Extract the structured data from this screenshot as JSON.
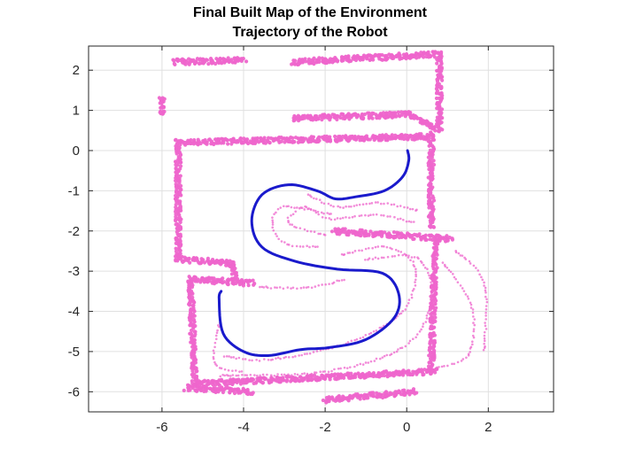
{
  "chart_data": {
    "type": "scatter",
    "title": "Final Built Map of the Environment",
    "subtitle": "Trajectory of the Robot",
    "xlabel": "",
    "ylabel": "",
    "xlim": [
      -7.8,
      3.6
    ],
    "ylim": [
      -6.5,
      2.6
    ],
    "x_ticks": [
      "-6",
      "-4",
      "-2",
      "0",
      "2"
    ],
    "x_tick_values": [
      -6,
      -4,
      -2,
      0,
      2
    ],
    "y_ticks": [
      "2",
      "1",
      "0",
      "-1",
      "-2",
      "-3",
      "-4",
      "-5",
      "-6"
    ],
    "y_tick_values": [
      2,
      1,
      0,
      -1,
      -2,
      -3,
      -4,
      -5,
      -6
    ],
    "grid": true,
    "colors": {
      "map": "#ee66cc",
      "trajectory": "#1a1acc",
      "grid": "#e0e0e0",
      "axes": "#262626"
    },
    "series": [
      {
        "marker": "dots",
        "walls": [
          [
            [
              -5.6,
              0.2
            ],
            [
              0.5,
              0.35
            ]
          ],
          [
            [
              -5.6,
              0.25
            ],
            [
              -5.6,
              -2.7
            ]
          ],
          [
            [
              -5.6,
              -2.7
            ],
            [
              -4.3,
              -2.8
            ]
          ],
          [
            [
              -4.3,
              -2.8
            ],
            [
              -4.2,
              -3.2
            ]
          ],
          [
            [
              -5.3,
              -3.2
            ],
            [
              -3.8,
              -3.3
            ]
          ],
          [
            [
              -5.3,
              -3.2
            ],
            [
              -5.2,
              -5.8
            ]
          ],
          [
            [
              -5.2,
              -5.8
            ],
            [
              0.7,
              -5.5
            ]
          ],
          [
            [
              0.6,
              0.5
            ],
            [
              0.6,
              -1.9
            ]
          ],
          [
            [
              -1.8,
              -2.0
            ],
            [
              1.1,
              -2.2
            ]
          ],
          [
            [
              0.7,
              -2.2
            ],
            [
              0.6,
              -5.5
            ]
          ],
          [
            [
              -2.8,
              0.8
            ],
            [
              0.1,
              0.9
            ]
          ],
          [
            [
              0.1,
              0.9
            ],
            [
              0.8,
              0.5
            ]
          ],
          [
            [
              -2.8,
              2.2
            ],
            [
              0.8,
              2.4
            ]
          ],
          [
            [
              0.8,
              2.4
            ],
            [
              0.8,
              0.6
            ]
          ],
          [
            [
              -6.0,
              1.3
            ],
            [
              -6.0,
              0.9
            ]
          ],
          [
            [
              -5.7,
              2.2
            ],
            [
              -4.0,
              2.25
            ]
          ],
          [
            [
              -5.4,
              -5.9
            ],
            [
              -3.8,
              -6.0
            ]
          ],
          [
            [
              -2.0,
              -6.2
            ],
            [
              0.2,
              -6.0
            ]
          ]
        ],
        "arcs": [
          [
            [
              -2.4,
              -1.1
            ],
            [
              -1.7,
              -1.4
            ],
            [
              -0.7,
              -1.3
            ],
            [
              0.3,
              -1.5
            ]
          ],
          [
            [
              -2.0,
              -2.1
            ],
            [
              -2.9,
              -1.8
            ],
            [
              -2.5,
              -1.4
            ],
            [
              -1.9,
              -1.7
            ],
            [
              -0.8,
              -1.6
            ],
            [
              0.2,
              -1.8
            ]
          ],
          [
            [
              -2.2,
              -2.4
            ],
            [
              -3.0,
              -2.3
            ],
            [
              -3.3,
              -1.8
            ],
            [
              -3.0,
              -1.4
            ],
            [
              -1.8,
              -1.6
            ]
          ],
          [
            [
              -1.6,
              -2.6
            ],
            [
              -0.5,
              -2.4
            ],
            [
              0.2,
              -2.9
            ],
            [
              -0.1,
              -4.0
            ],
            [
              -1.5,
              -4.8
            ],
            [
              -3.4,
              -5.2
            ],
            [
              -4.5,
              -5.1
            ]
          ],
          [
            [
              -1.0,
              -2.7
            ],
            [
              0.3,
              -2.7
            ],
            [
              0.6,
              -3.8
            ],
            [
              -0.1,
              -4.9
            ],
            [
              -2.0,
              -5.5
            ],
            [
              -4.6,
              -5.6
            ]
          ],
          [
            [
              -4.6,
              -4.3
            ],
            [
              -4.7,
              -5.3
            ],
            [
              -4.0,
              -5.5
            ]
          ],
          [
            [
              0.9,
              -2.8
            ],
            [
              1.6,
              -3.9
            ],
            [
              1.5,
              -5.1
            ],
            [
              0.7,
              -5.4
            ]
          ],
          [
            [
              1.2,
              -2.5
            ],
            [
              1.9,
              -3.3
            ],
            [
              1.9,
              -5.0
            ]
          ],
          [
            [
              -3.6,
              -3.4
            ],
            [
              -2.4,
              -3.4
            ],
            [
              -1.5,
              -3.2
            ]
          ]
        ]
      },
      {
        "points": [
          [
            0.02,
            0.0
          ],
          [
            0.05,
            -0.25
          ],
          [
            -0.1,
            -0.65
          ],
          [
            -0.55,
            -1.0
          ],
          [
            -1.25,
            -1.15
          ],
          [
            -1.75,
            -1.2
          ],
          [
            -2.2,
            -1.0
          ],
          [
            -2.9,
            -0.85
          ],
          [
            -3.55,
            -1.1
          ],
          [
            -3.8,
            -1.75
          ],
          [
            -3.55,
            -2.4
          ],
          [
            -2.75,
            -2.75
          ],
          [
            -1.7,
            -2.95
          ],
          [
            -0.6,
            -3.05
          ],
          [
            -0.2,
            -3.55
          ],
          [
            -0.3,
            -4.15
          ],
          [
            -1.0,
            -4.7
          ],
          [
            -1.9,
            -4.9
          ],
          [
            -2.6,
            -4.95
          ],
          [
            -3.4,
            -5.1
          ],
          [
            -4.0,
            -5.0
          ],
          [
            -4.5,
            -4.55
          ],
          [
            -4.6,
            -3.7
          ],
          [
            -4.55,
            -3.5
          ]
        ]
      }
    ]
  }
}
